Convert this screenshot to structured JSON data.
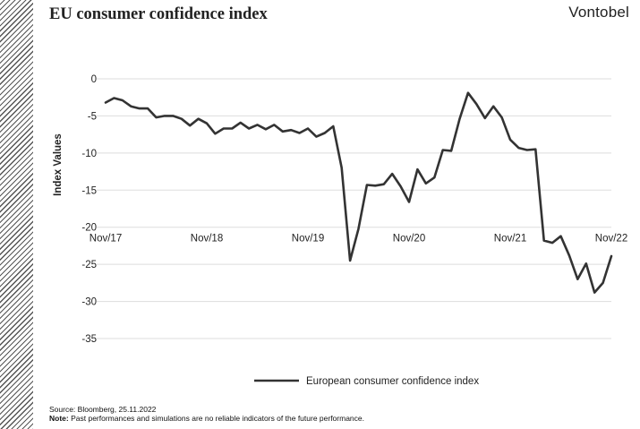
{
  "header": {
    "title": "EU consumer confidence index",
    "brand": "Vontobel"
  },
  "footer": {
    "source": "Source: Bloomberg, 25.11.2022",
    "note_label": "Note:",
    "note_text": " Past performances and simulations are no reliable indicators of the future performance."
  },
  "colors": {
    "line": "#333333",
    "grid": "#dddddd",
    "text": "#222222",
    "hatch": "#555555"
  },
  "chart_data": {
    "type": "line",
    "title": "EU consumer confidence index",
    "ylabel": "Index Values",
    "xlabel": "",
    "ylim": [
      -35,
      0
    ],
    "yticks": [
      0,
      -5,
      -10,
      -15,
      -20,
      -25,
      -30,
      -35
    ],
    "x_tick_labels": [
      "Nov/17",
      "Nov/18",
      "Nov/19",
      "Nov/20",
      "Nov/21",
      "Nov/22"
    ],
    "x_tick_indices": [
      0,
      12,
      24,
      36,
      48,
      60
    ],
    "grid": true,
    "legend": "bottom-center",
    "series": [
      {
        "name": "European consumer confidence index",
        "values": [
          -3.2,
          -2.6,
          -2.9,
          -3.7,
          -4.0,
          -4.0,
          -5.2,
          -5.0,
          -5.0,
          -5.4,
          -6.3,
          -5.4,
          -6.0,
          -7.4,
          -6.7,
          -6.7,
          -5.9,
          -6.7,
          -6.2,
          -6.8,
          -6.2,
          -7.1,
          -6.9,
          -7.3,
          -6.7,
          -7.8,
          -7.3,
          -6.4,
          -12.0,
          -24.5,
          -20.2,
          -14.3,
          -14.4,
          -14.2,
          -12.8,
          -14.5,
          -16.6,
          -12.2,
          -14.1,
          -13.3,
          -9.6,
          -9.7,
          -5.4,
          -1.9,
          -3.4,
          -5.3,
          -3.7,
          -5.2,
          -8.2,
          -9.3,
          -9.6,
          -9.5,
          -21.8,
          -22.1,
          -21.2,
          -23.8,
          -27.0,
          -24.9,
          -28.8,
          -27.5,
          -23.9
        ]
      }
    ]
  }
}
